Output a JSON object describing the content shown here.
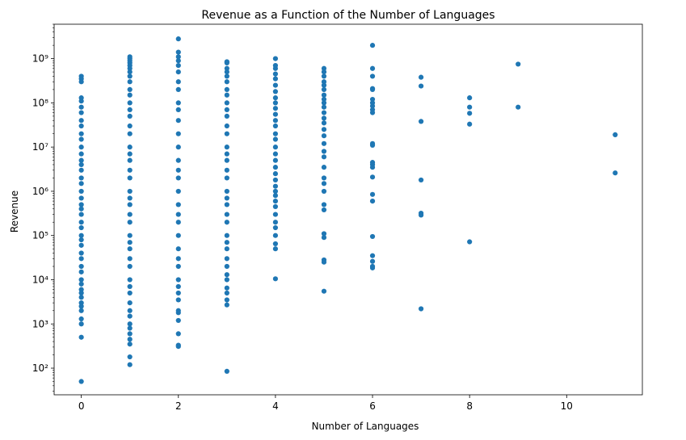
{
  "chart_data": {
    "type": "scatter",
    "title": "Revenue as a Function of the Number of Languages",
    "xlabel": "Number of Languages",
    "ylabel": "Revenue",
    "yscale": "log",
    "xlim": [
      -0.56,
      11.56
    ],
    "ylim": [
      25,
      6000000000
    ],
    "grid": false,
    "marker_color": "#1f77b4",
    "x_ticks": [
      0,
      2,
      4,
      6,
      8,
      10
    ],
    "y_ticks": [
      100,
      1000,
      10000,
      100000,
      1000000,
      10000000,
      100000000,
      1000000000
    ],
    "y_tick_labels": [
      "10²",
      "10³",
      "10⁴",
      "10⁵",
      "10⁶",
      "10⁷",
      "10⁸",
      "10⁹"
    ],
    "series": [
      {
        "points": [
          [
            0,
            400000000
          ],
          [
            0,
            350000000
          ],
          [
            0,
            300000000
          ],
          [
            0,
            130000000
          ],
          [
            0,
            110000000
          ],
          [
            0,
            80000000
          ],
          [
            0,
            60000000
          ],
          [
            0,
            40000000
          ],
          [
            0,
            30000000
          ],
          [
            0,
            20000000
          ],
          [
            0,
            15000000
          ],
          [
            0,
            10000000
          ],
          [
            0,
            7000000
          ],
          [
            0,
            5000000
          ],
          [
            0,
            4000000
          ],
          [
            0,
            3000000
          ],
          [
            0,
            2000000
          ],
          [
            0,
            1500000
          ],
          [
            0,
            1000000
          ],
          [
            0,
            700000
          ],
          [
            0,
            500000
          ],
          [
            0,
            400000
          ],
          [
            0,
            300000
          ],
          [
            0,
            200000
          ],
          [
            0,
            150000
          ],
          [
            0,
            100000
          ],
          [
            0,
            80000
          ],
          [
            0,
            60000
          ],
          [
            0,
            40000
          ],
          [
            0,
            30000
          ],
          [
            0,
            20000
          ],
          [
            0,
            15000
          ],
          [
            0,
            10000
          ],
          [
            0,
            8000
          ],
          [
            0,
            6000
          ],
          [
            0,
            5000
          ],
          [
            0,
            4000
          ],
          [
            0,
            3000
          ],
          [
            0,
            2500
          ],
          [
            0,
            2000
          ],
          [
            0,
            1300
          ],
          [
            0,
            1000
          ],
          [
            0,
            500
          ],
          [
            0,
            50
          ],
          [
            1,
            1100000000
          ],
          [
            1,
            1000000000
          ],
          [
            1,
            900000000
          ],
          [
            1,
            800000000
          ],
          [
            1,
            700000000
          ],
          [
            1,
            600000000
          ],
          [
            1,
            500000000
          ],
          [
            1,
            400000000
          ],
          [
            1,
            300000000
          ],
          [
            1,
            200000000
          ],
          [
            1,
            150000000
          ],
          [
            1,
            100000000
          ],
          [
            1,
            70000000
          ],
          [
            1,
            50000000
          ],
          [
            1,
            30000000
          ],
          [
            1,
            20000000
          ],
          [
            1,
            10000000
          ],
          [
            1,
            7000000
          ],
          [
            1,
            5000000
          ],
          [
            1,
            3000000
          ],
          [
            1,
            2000000
          ],
          [
            1,
            1000000
          ],
          [
            1,
            700000
          ],
          [
            1,
            500000
          ],
          [
            1,
            300000
          ],
          [
            1,
            200000
          ],
          [
            1,
            100000
          ],
          [
            1,
            70000
          ],
          [
            1,
            50000
          ],
          [
            1,
            30000
          ],
          [
            1,
            20000
          ],
          [
            1,
            10000
          ],
          [
            1,
            7000
          ],
          [
            1,
            5000
          ],
          [
            1,
            3000
          ],
          [
            1,
            2000
          ],
          [
            1,
            1500
          ],
          [
            1,
            1000
          ],
          [
            1,
            800
          ],
          [
            1,
            600
          ],
          [
            1,
            450
          ],
          [
            1,
            350
          ],
          [
            1,
            180
          ],
          [
            1,
            120
          ],
          [
            2,
            2800000000
          ],
          [
            2,
            1400000000
          ],
          [
            2,
            1100000000
          ],
          [
            2,
            900000000
          ],
          [
            2,
            700000000
          ],
          [
            2,
            500000000
          ],
          [
            2,
            300000000
          ],
          [
            2,
            200000000
          ],
          [
            2,
            100000000
          ],
          [
            2,
            70000000
          ],
          [
            2,
            40000000
          ],
          [
            2,
            20000000
          ],
          [
            2,
            10000000
          ],
          [
            2,
            5000000
          ],
          [
            2,
            3000000
          ],
          [
            2,
            2000000
          ],
          [
            2,
            1000000
          ],
          [
            2,
            500000
          ],
          [
            2,
            300000
          ],
          [
            2,
            200000
          ],
          [
            2,
            100000
          ],
          [
            2,
            50000
          ],
          [
            2,
            30000
          ],
          [
            2,
            20000
          ],
          [
            2,
            10000
          ],
          [
            2,
            7000
          ],
          [
            2,
            5000
          ],
          [
            2,
            3500
          ],
          [
            2,
            2000
          ],
          [
            2,
            1800
          ],
          [
            2,
            1200
          ],
          [
            2,
            600
          ],
          [
            2,
            330
          ],
          [
            2,
            310
          ],
          [
            3,
            850000000
          ],
          [
            3,
            800000000
          ],
          [
            3,
            600000000
          ],
          [
            3,
            500000000
          ],
          [
            3,
            400000000
          ],
          [
            3,
            300000000
          ],
          [
            3,
            200000000
          ],
          [
            3,
            150000000
          ],
          [
            3,
            100000000
          ],
          [
            3,
            70000000
          ],
          [
            3,
            50000000
          ],
          [
            3,
            30000000
          ],
          [
            3,
            20000000
          ],
          [
            3,
            10000000
          ],
          [
            3,
            7000000
          ],
          [
            3,
            5000000
          ],
          [
            3,
            3000000
          ],
          [
            3,
            2000000
          ],
          [
            3,
            1000000
          ],
          [
            3,
            700000
          ],
          [
            3,
            500000
          ],
          [
            3,
            300000
          ],
          [
            3,
            200000
          ],
          [
            3,
            100000
          ],
          [
            3,
            70000
          ],
          [
            3,
            50000
          ],
          [
            3,
            30000
          ],
          [
            3,
            20000
          ],
          [
            3,
            13000
          ],
          [
            3,
            10000
          ],
          [
            3,
            6500
          ],
          [
            3,
            5000
          ],
          [
            3,
            3500
          ],
          [
            3,
            2700
          ],
          [
            3,
            85
          ],
          [
            4,
            1000000000
          ],
          [
            4,
            700000000
          ],
          [
            4,
            600000000
          ],
          [
            4,
            450000000
          ],
          [
            4,
            350000000
          ],
          [
            4,
            250000000
          ],
          [
            4,
            180000000
          ],
          [
            4,
            130000000
          ],
          [
            4,
            100000000
          ],
          [
            4,
            75000000
          ],
          [
            4,
            55000000
          ],
          [
            4,
            40000000
          ],
          [
            4,
            30000000
          ],
          [
            4,
            20000000
          ],
          [
            4,
            15000000
          ],
          [
            4,
            10000000
          ],
          [
            4,
            7000000
          ],
          [
            4,
            5000000
          ],
          [
            4,
            3500000
          ],
          [
            4,
            2500000
          ],
          [
            4,
            1800000
          ],
          [
            4,
            1300000
          ],
          [
            4,
            1000000
          ],
          [
            4,
            800000
          ],
          [
            4,
            600000
          ],
          [
            4,
            450000
          ],
          [
            4,
            300000
          ],
          [
            4,
            200000
          ],
          [
            4,
            150000
          ],
          [
            4,
            100000
          ],
          [
            4,
            65000
          ],
          [
            4,
            50000
          ],
          [
            4,
            10500
          ],
          [
            5,
            600000000
          ],
          [
            5,
            500000000
          ],
          [
            5,
            400000000
          ],
          [
            5,
            300000000
          ],
          [
            5,
            250000000
          ],
          [
            5,
            200000000
          ],
          [
            5,
            150000000
          ],
          [
            5,
            120000000
          ],
          [
            5,
            100000000
          ],
          [
            5,
            80000000
          ],
          [
            5,
            60000000
          ],
          [
            5,
            45000000
          ],
          [
            5,
            35000000
          ],
          [
            5,
            25000000
          ],
          [
            5,
            18000000
          ],
          [
            5,
            12000000
          ],
          [
            5,
            8000000
          ],
          [
            5,
            6000000
          ],
          [
            5,
            3500000
          ],
          [
            5,
            2000000
          ],
          [
            5,
            1500000
          ],
          [
            5,
            1000000
          ],
          [
            5,
            500000
          ],
          [
            5,
            380000
          ],
          [
            5,
            110000
          ],
          [
            5,
            90000
          ],
          [
            5,
            28000
          ],
          [
            5,
            25000
          ],
          [
            5,
            5500
          ],
          [
            6,
            2000000000
          ],
          [
            6,
            600000000
          ],
          [
            6,
            400000000
          ],
          [
            6,
            210000000
          ],
          [
            6,
            200000000
          ],
          [
            6,
            120000000
          ],
          [
            6,
            100000000
          ],
          [
            6,
            85000000
          ],
          [
            6,
            70000000
          ],
          [
            6,
            60000000
          ],
          [
            6,
            12000000
          ],
          [
            6,
            11000000
          ],
          [
            6,
            4500000
          ],
          [
            6,
            4000000
          ],
          [
            6,
            3500000
          ],
          [
            6,
            2100000
          ],
          [
            6,
            850000
          ],
          [
            6,
            600000
          ],
          [
            6,
            95000
          ],
          [
            6,
            35000
          ],
          [
            6,
            26000
          ],
          [
            6,
            20000
          ],
          [
            6,
            18500
          ],
          [
            7,
            380000000
          ],
          [
            7,
            240000000
          ],
          [
            7,
            38000000
          ],
          [
            7,
            1800000
          ],
          [
            7,
            320000
          ],
          [
            7,
            290000
          ],
          [
            7,
            2200
          ],
          [
            8,
            130000000
          ],
          [
            8,
            80000000
          ],
          [
            8,
            58000000
          ],
          [
            8,
            33000000
          ],
          [
            8,
            72000
          ],
          [
            9,
            750000000
          ],
          [
            9,
            80000000
          ],
          [
            11,
            19000000
          ],
          [
            11,
            2600000
          ]
        ]
      }
    ]
  }
}
